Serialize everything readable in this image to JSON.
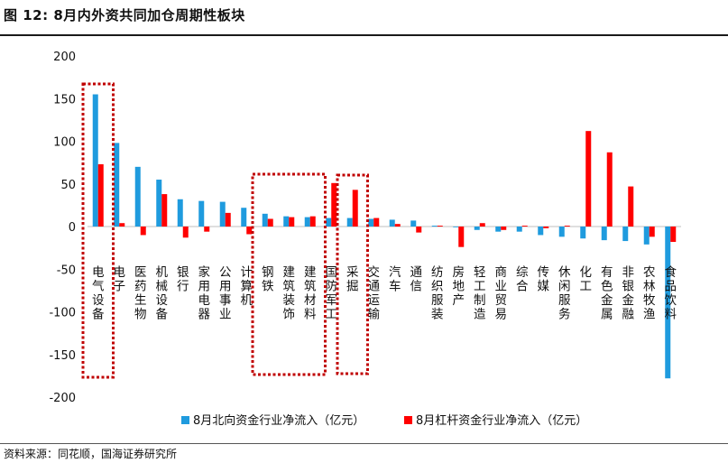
{
  "figure": {
    "title": "图 12:  8月内外资共同加仓周期性板块",
    "source": "资料来源：同花顺，国海证券研究所"
  },
  "chart_data": {
    "type": "bar",
    "ylim": [
      -200,
      200
    ],
    "yticks": [
      -200,
      -150,
      -100,
      -50,
      0,
      50,
      100,
      150,
      200
    ],
    "grid": false,
    "legend_position": "bottom",
    "categories": [
      "电气设备",
      "电子",
      "医药生物",
      "机械设备",
      "银行",
      "家用电器",
      "公用事业",
      "计算机",
      "钢铁",
      "建筑装饰",
      "建筑材料",
      "国防军工",
      "采掘",
      "交通运输",
      "汽车",
      "通信",
      "纺织服装",
      "房地产",
      "轻工制造",
      "商业贸易",
      "综合",
      "传媒",
      "休闲服务",
      "化工",
      "有色金属",
      "非银金融",
      "农林牧渔",
      "食品饮料"
    ],
    "series": [
      {
        "name": "8月北向资金行业净流入（亿元）",
        "color": "#1f9bde",
        "values": [
          155,
          98,
          70,
          55,
          32,
          30,
          29,
          22,
          15,
          12,
          11,
          10,
          10,
          9,
          8,
          7,
          1,
          0,
          -4,
          -6,
          -6,
          -10,
          -12,
          -14,
          -16,
          -17,
          -21,
          -178
        ]
      },
      {
        "name": "8月杠杆资金行业净流入（亿元）",
        "color": "#ff0000",
        "values": [
          73,
          4,
          -10,
          38,
          -13,
          -6,
          16,
          -9,
          9,
          11,
          12,
          51,
          43,
          10,
          3,
          -7,
          1,
          -24,
          4,
          -4,
          1,
          -2,
          1,
          112,
          87,
          47,
          -12,
          -18
        ]
      }
    ],
    "highlight_groups": [
      [
        0,
        0
      ],
      [
        8,
        10
      ],
      [
        12,
        12
      ]
    ]
  }
}
